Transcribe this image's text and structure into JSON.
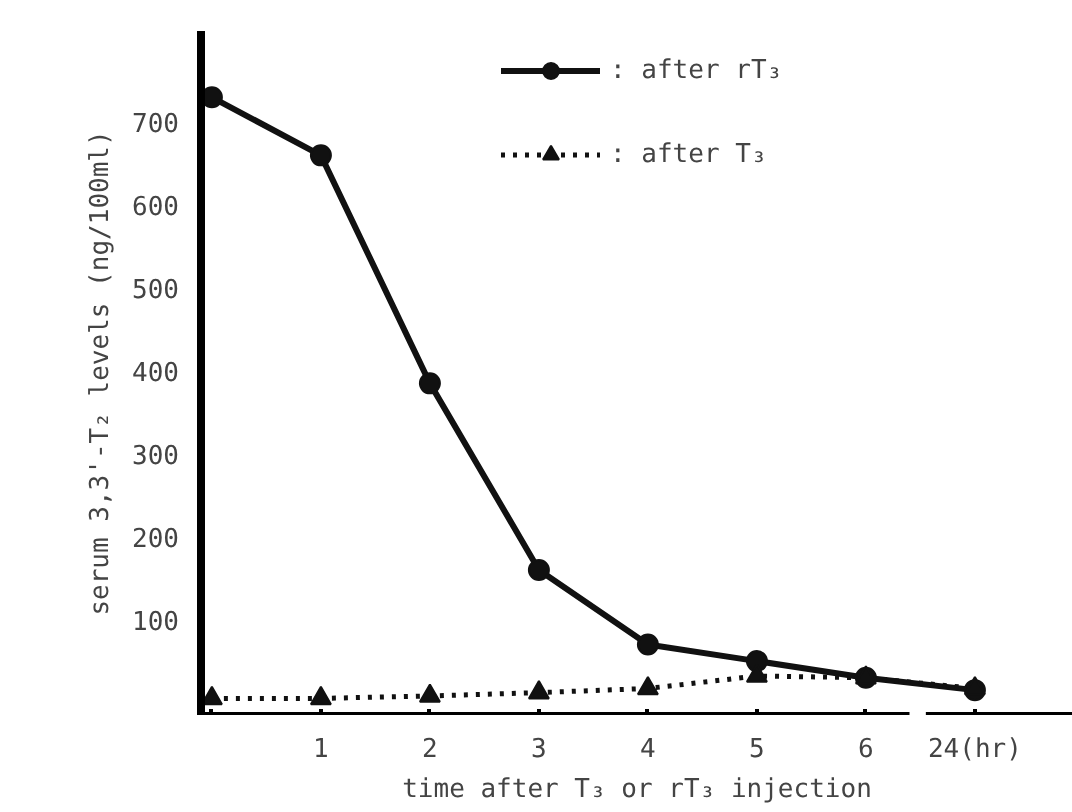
{
  "chart_data": {
    "type": "line",
    "xlabel": "time after T₃ or rT₃ injection",
    "ylabel": "serum 3,3'-T₂ levels (ng/100ml)",
    "categories": [
      null,
      "1",
      "2",
      "3",
      "4",
      "5",
      "6",
      "24(hr)"
    ],
    "ylim": [
      -15,
      810
    ],
    "yticks": [
      100,
      200,
      300,
      400,
      500,
      600,
      700
    ],
    "series": [
      {
        "name": ": after rT₃",
        "color": "#111111",
        "marker": "circle",
        "line_style": "solid",
        "values": [
          730,
          660,
          385,
          160,
          70,
          50,
          30,
          15
        ]
      },
      {
        "name": ": after T₃",
        "color": "#111111",
        "marker": "triangle",
        "line_style": "dotted",
        "values": [
          5,
          5,
          8,
          12,
          17,
          32,
          30,
          17
        ]
      }
    ],
    "legend": "top right",
    "grid": false
  }
}
